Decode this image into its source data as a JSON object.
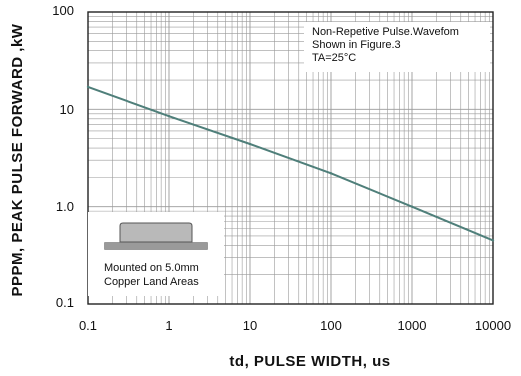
{
  "chart_data": {
    "type": "line",
    "xlabel": "td, PULSE WIDTH, us",
    "ylabel": "PPPM, PEAK PULSE FORWARD ,kW",
    "xscale": "log",
    "yscale": "log",
    "xlim": [
      0.1,
      10000
    ],
    "ylim": [
      0.1,
      100
    ],
    "grid": true,
    "x_tick_labels": [
      "0.1",
      "1",
      "10",
      "100",
      "1000",
      "10000"
    ],
    "y_tick_labels": [
      "0.1",
      "1.0",
      "10",
      "100"
    ],
    "series": [
      {
        "color": "#4f7f7a",
        "x": [
          0.1,
          1,
          10,
          100,
          1000,
          10000
        ],
        "y": [
          17,
          8.5,
          4.4,
          2.2,
          1.0,
          0.45
        ]
      }
    ],
    "annotations": {
      "top_right": [
        "Non-Repetive  Pulse.Wavefom",
        "Shown in Figure.3",
        "TA=25°C"
      ],
      "bottom_left": [
        "Mounted on 5.0mm",
        "Copper Land Areas"
      ]
    }
  },
  "colors": {
    "grid": "#9a9a9a",
    "frame": "#222222",
    "series": "#4f7f7a",
    "package_body": "#b9b9b9"
  }
}
